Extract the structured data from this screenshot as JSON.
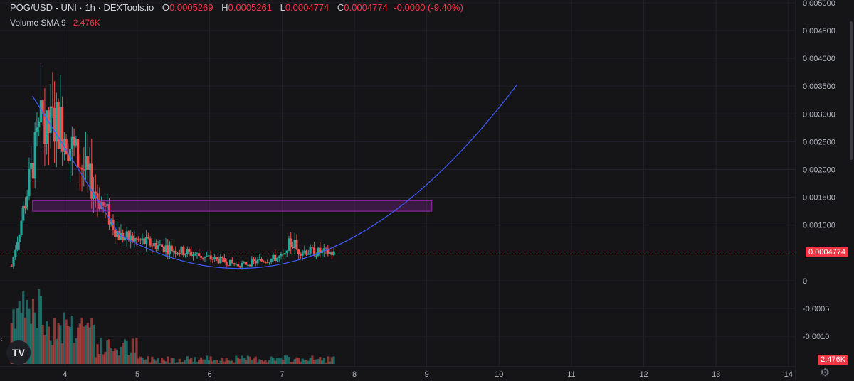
{
  "legend": {
    "title": "POG/USD - UNI · 1h · DEXTools.io",
    "o_label": "O",
    "o_value": "0.0005269",
    "h_label": "H",
    "h_value": "0.0005261",
    "l_label": "L",
    "l_value": "0.0004774",
    "c_label": "C",
    "c_value": "0.0004774",
    "change": "-0.0000 (-9.40%)",
    "sma_label": "Volume SMA 9",
    "sma_value": "2.476K"
  },
  "price_tag": "0.0004774",
  "volume_tag": "2.476K",
  "logo_text": "TV",
  "colors": {
    "background": "#151518",
    "up": "#26a69a",
    "down": "#ef5350",
    "curve": "#3d5afe",
    "zone": "#9c27b0",
    "last_price": "#f23645"
  },
  "chart_data": {
    "type": "candlestick",
    "title": "POG/USD - UNI · 1h · DEXTools.io",
    "x_ticks": [
      "4",
      "5",
      "6",
      "7",
      "8",
      "9",
      "10",
      "11",
      "12",
      "13",
      "14"
    ],
    "x_tick_values": [
      4,
      5,
      6,
      7,
      8,
      9,
      10,
      11,
      12,
      13,
      14
    ],
    "y_ticks": [
      "0.005000",
      "0.004500",
      "0.004000",
      "0.003500",
      "0.003000",
      "0.002500",
      "0.002000",
      "0.001500",
      "0.001000",
      "0.0004774",
      "0",
      "-0.0005",
      "-0.0010"
    ],
    "y_tick_values": [
      0.005,
      0.0045,
      0.004,
      0.0035,
      0.003,
      0.0025,
      0.002,
      0.0015,
      0.001,
      0.0004774,
      0,
      -0.0005,
      -0.001
    ],
    "xlim": [
      3.1,
      14.1
    ],
    "ylim": [
      -0.00155,
      0.00505
    ],
    "last_price": 0.0004774,
    "grid": true,
    "candles_sample": [
      {
        "x": 3.5,
        "o": 0.0008,
        "h": 0.0013,
        "l": 0.0006,
        "c": 0.0012
      },
      {
        "x": 3.7,
        "o": 0.0024,
        "h": 0.0033,
        "l": 0.0016,
        "c": 0.0029
      },
      {
        "x": 4.0,
        "o": 0.0024,
        "h": 0.0035,
        "l": 0.002,
        "c": 0.0033
      },
      {
        "x": 4.3,
        "o": 0.0022,
        "h": 0.0025,
        "l": 0.0013,
        "c": 0.0015
      },
      {
        "x": 4.6,
        "o": 0.0011,
        "h": 0.0013,
        "l": 0.0008,
        "c": 0.0009
      },
      {
        "x": 5.0,
        "o": 0.0006,
        "h": 0.0011,
        "l": 0.0004,
        "c": 0.0007
      },
      {
        "x": 5.5,
        "o": 0.0005,
        "h": 0.0006,
        "l": 0.0003,
        "c": 0.0004
      },
      {
        "x": 6.2,
        "o": 0.0003,
        "h": 0.0004,
        "l": 0.00022,
        "c": 0.00025
      },
      {
        "x": 6.7,
        "o": 0.0004,
        "h": 0.0005,
        "l": 0.0003,
        "c": 0.00045
      },
      {
        "x": 7.1,
        "o": 0.0005,
        "h": 0.0009,
        "l": 0.0004,
        "c": 0.0007
      },
      {
        "x": 7.7,
        "o": 0.0005269,
        "h": 0.0005261,
        "l": 0.0004774,
        "c": 0.0004774
      }
    ],
    "zone": {
      "x_start": 3.55,
      "x_end": 9.07,
      "y_low": 0.00125,
      "y_high": 0.00144
    },
    "trend_line": {
      "from": {
        "x": 3.55,
        "y": 0.00332
      },
      "to": {
        "x": 4.75,
        "y": 0.00083
      }
    },
    "cup_curve": {
      "vertex_x": 6.4,
      "vertex_y": 0.00022,
      "end_x": 10.25,
      "end_y": 0.00353
    },
    "volume": {
      "sma": "2.476K"
    }
  }
}
